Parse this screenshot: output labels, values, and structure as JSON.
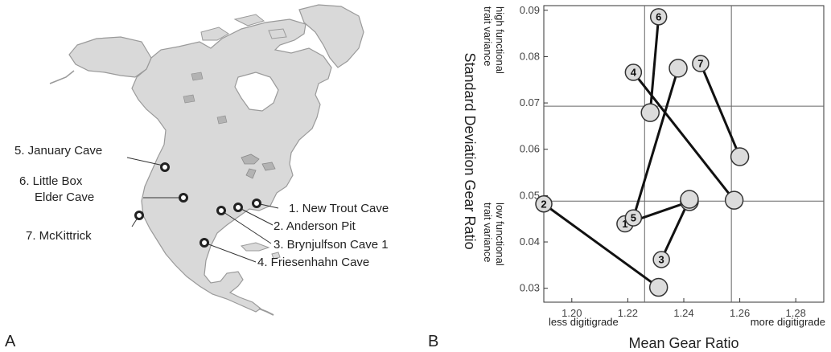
{
  "panels": {
    "a_letter": "A",
    "b_letter": "B"
  },
  "map": {
    "sites": [
      {
        "number": 1,
        "label": "1. New Trout Cave"
      },
      {
        "number": 2,
        "label": "2. Anderson Pit"
      },
      {
        "number": 3,
        "label": "3. Brynjulfson Cave 1"
      },
      {
        "number": 4,
        "label": "4. Friesenhahn Cave"
      },
      {
        "number": 5,
        "label": "5. January Cave"
      },
      {
        "number": 6,
        "label_lines": [
          "6. Little Box",
          "Elder Cave"
        ]
      },
      {
        "number": 7,
        "label": "7. McKittrick"
      }
    ],
    "colors": {
      "land": "#d9d9d9",
      "coast": "#9a9a9a",
      "lakes": "#b3b3b3",
      "marker": "#222222"
    }
  },
  "chart_data": {
    "type": "scatter",
    "xlabel": "Mean Gear Ratio",
    "ylabel": "Standard Deviation Gear Ratio",
    "xlim": [
      1.19,
      1.29
    ],
    "ylim": [
      0.027,
      0.091
    ],
    "x_ticks": [
      "1.20",
      "1.22",
      "1.24",
      "1.26",
      "1.28"
    ],
    "y_ticks": [
      "0.03",
      "0.04",
      "0.05",
      "0.06",
      "0.07",
      "0.08",
      "0.09"
    ],
    "x_annotations": {
      "left": "less digitigrade",
      "right": "more digitigrade"
    },
    "y_annotations": {
      "top": [
        "high functional",
        "trait variance"
      ],
      "bottom": [
        "low functional",
        "trait variance"
      ]
    },
    "reference_lines": {
      "x": [
        1.226,
        1.257
      ],
      "y": [
        0.0488,
        0.0693
      ]
    },
    "grid": false,
    "sites": [
      {
        "label": "1",
        "start": [
          1.219,
          0.0439
        ],
        "end": [
          1.242,
          0.0487
        ]
      },
      {
        "label": "2",
        "start": [
          1.19,
          0.0482
        ],
        "end": [
          1.231,
          0.0302
        ]
      },
      {
        "label": "3",
        "start": [
          1.232,
          0.0362
        ],
        "end": [
          1.242,
          0.0492
        ]
      },
      {
        "label": "4",
        "start": [
          1.222,
          0.0766
        ],
        "end": [
          1.258,
          0.049
        ]
      },
      {
        "label": "5",
        "start": [
          1.222,
          0.0452
        ],
        "end": [
          1.238,
          0.0775
        ]
      },
      {
        "label": "6",
        "start": [
          1.231,
          0.0886
        ],
        "end": [
          1.228,
          0.0679
        ]
      },
      {
        "label": "7",
        "start": [
          1.246,
          0.0785
        ],
        "end": [
          1.26,
          0.0584
        ]
      }
    ],
    "colors": {
      "marker_fill": "#dcdcdc",
      "marker_stroke": "#333333",
      "line": "#111111",
      "ref_line": "#666666"
    }
  }
}
